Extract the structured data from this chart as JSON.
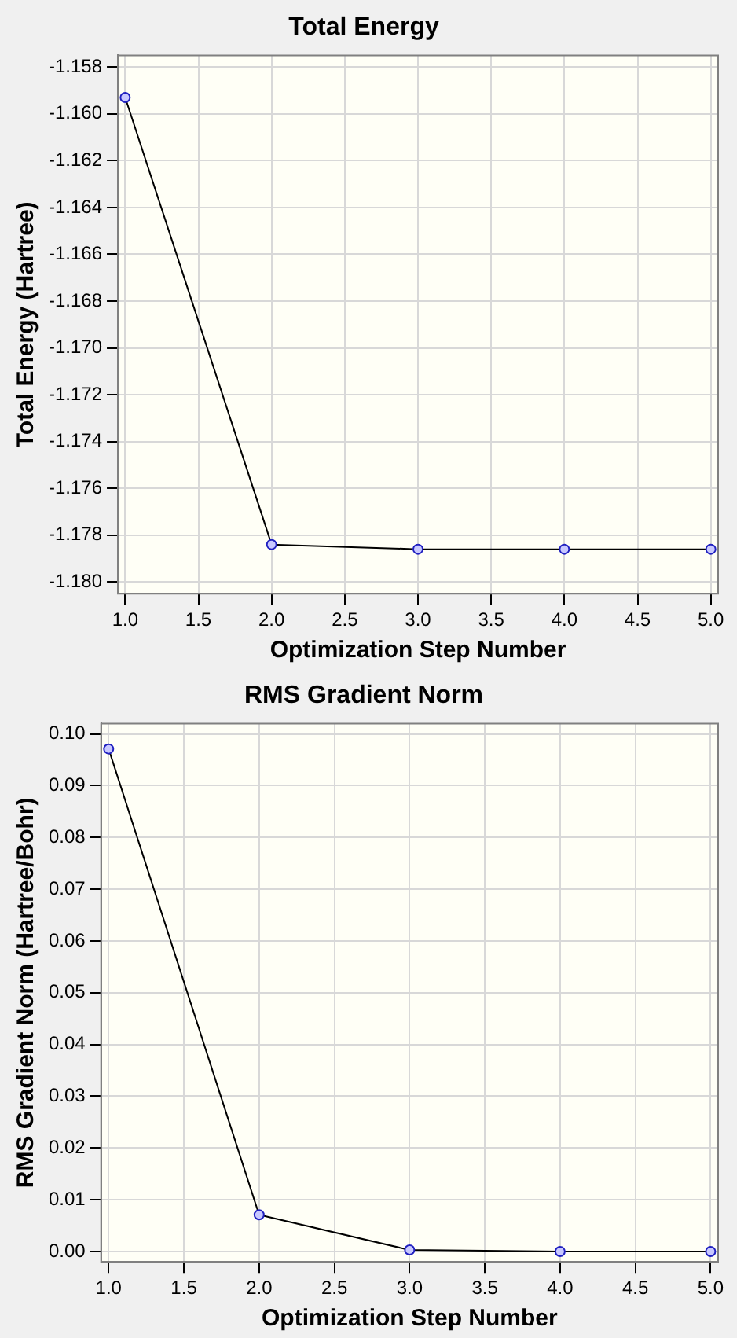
{
  "chart_data": [
    {
      "type": "line",
      "title": "Total Energy",
      "xlabel": "Optimization Step Number",
      "ylabel": "Total Energy (Hartree)",
      "x": [
        1,
        2,
        3,
        4,
        5
      ],
      "series": [
        {
          "color": "#000000",
          "values": [
            -1.1593,
            -1.1784,
            -1.1786,
            -1.1786,
            -1.1786
          ]
        }
      ],
      "xlim": [
        0.95,
        5.05
      ],
      "ylim": [
        -1.1805,
        -1.1575
      ],
      "xticks": [
        {
          "value": 1,
          "label": "1.0"
        },
        {
          "value": 1.5,
          "label": "1.5"
        },
        {
          "value": 2,
          "label": "2.0"
        },
        {
          "value": 2.5,
          "label": "2.5"
        },
        {
          "value": 3,
          "label": "3.0"
        },
        {
          "value": 3.5,
          "label": "3.5"
        },
        {
          "value": 4,
          "label": "4.0"
        },
        {
          "value": 4.5,
          "label": "4.5"
        },
        {
          "value": 5,
          "label": "5.0"
        }
      ],
      "yticks": [
        -1.158,
        {
          "value": -1.16,
          "label": "-1.160"
        },
        -1.162,
        -1.164,
        -1.166,
        -1.168,
        {
          "value": -1.17,
          "label": "-1.170"
        },
        -1.172,
        -1.174,
        -1.176,
        -1.178,
        {
          "value": -1.18,
          "label": "-1.180"
        }
      ],
      "grid": true,
      "marker": "circle",
      "legend": false
    },
    {
      "type": "line",
      "title": "RMS Gradient Norm",
      "xlabel": "Optimization Step Number",
      "ylabel": "RMS Gradient Norm (Hartree/Bohr)",
      "x": [
        1,
        2,
        3,
        4,
        5
      ],
      "series": [
        {
          "color": "#000000",
          "values": [
            0.0971,
            0.0071,
            0.0003,
            0.0,
            0.0
          ]
        }
      ],
      "xlim": [
        0.95,
        5.05
      ],
      "ylim": [
        -0.002,
        0.102
      ],
      "xticks": [
        {
          "value": 1,
          "label": "1.0"
        },
        {
          "value": 1.5,
          "label": "1.5"
        },
        {
          "value": 2,
          "label": "2.0"
        },
        {
          "value": 2.5,
          "label": "2.5"
        },
        {
          "value": 3,
          "label": "3.0"
        },
        {
          "value": 3.5,
          "label": "3.5"
        },
        {
          "value": 4,
          "label": "4.0"
        },
        {
          "value": 4.5,
          "label": "4.5"
        },
        {
          "value": 5,
          "label": "5.0"
        }
      ],
      "yticks": [
        {
          "value": 0,
          "label": "0.00"
        },
        {
          "value": 0.01,
          "label": "0.01"
        },
        {
          "value": 0.02,
          "label": "0.02"
        },
        {
          "value": 0.03,
          "label": "0.03"
        },
        {
          "value": 0.04,
          "label": "0.04"
        },
        {
          "value": 0.05,
          "label": "0.05"
        },
        {
          "value": 0.06,
          "label": "0.06"
        },
        {
          "value": 0.07,
          "label": "0.07"
        },
        {
          "value": 0.08,
          "label": "0.08"
        },
        {
          "value": 0.09,
          "label": "0.09"
        },
        {
          "value": 0.1,
          "label": "0.10"
        }
      ],
      "grid": true,
      "marker": "circle",
      "legend": false
    }
  ]
}
